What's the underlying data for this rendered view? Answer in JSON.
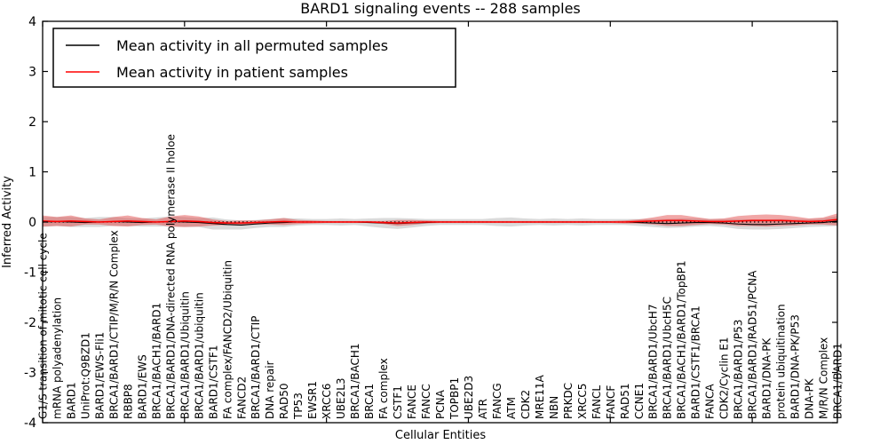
{
  "title": "BARD1 signaling events -- 288 samples",
  "legend": {
    "items": [
      {
        "label": "Mean activity in all permuted samples",
        "color": "#000000"
      },
      {
        "label": "Mean activity in patient samples",
        "color": "#ff0000"
      }
    ]
  },
  "colors": {
    "permuted_line": "#000000",
    "patient_line": "#ff0000",
    "permuted_band": "rgba(140,140,140,0.32)",
    "patient_band": "rgba(225,60,60,0.45)",
    "zero_line": "#000000",
    "frame": "#000000"
  },
  "chart_data": {
    "type": "line",
    "title": "BARD1 signaling events -- 288 samples",
    "xlabel": "Cellular Entities",
    "ylabel": "Inferred Activity",
    "ylim": [
      -4,
      4
    ],
    "yticks": [
      -4,
      -3,
      -2,
      -1,
      0,
      1,
      2,
      3,
      4
    ],
    "ytick_labels": [
      "-4",
      "-3",
      "-2",
      "-1",
      "0",
      "1",
      "2",
      "3",
      "4"
    ],
    "xtick_interval": 10,
    "grid": false,
    "legend_position": "upper left",
    "categories": [
      "G1/S transition of mitotic cell cycle",
      "mRNA polyadenylation",
      "BARD1",
      "UniProt:Q9BZD1",
      "BARD1/EWS-Fli1",
      "BRCA1/BARD1/CTIP/M/R/N Complex",
      "RBBP8",
      "BARD1/EWS",
      "BRCA1/BACH1/BARD1",
      "BRCA1/BARD1/DNA-directed RNA polymerase II holoe",
      "BRCA1/BARD1/Ubiquitin",
      "BRCA1/BARD1/ubiquitin",
      "BARD1/CSTF1",
      "FA complex/FANCD2/Ubiquitin",
      "FANCD2",
      "BRCA1/BARD1/CTIP",
      "DNA repair",
      "RAD50",
      "TP53",
      "EWSR1",
      "XRCC6",
      "UBE2L3",
      "BRCA1/BACH1",
      "BRCA1",
      "FA complex",
      "CSTF1",
      "FANCE",
      "FANCC",
      "PCNA",
      "TOPBP1",
      "UBE2D3",
      "ATR",
      "FANCG",
      "ATM",
      "CDK2",
      "MRE11A",
      "NBN",
      "PRKDC",
      "XRCC5",
      "FANCL",
      "FANCF",
      "RAD51",
      "CCNE1",
      "BRCA1/BARD1/UbcH7",
      "BRCA1/BARD1/UbcH5C",
      "BRCA1/BACH1/BARD1/TopBP1",
      "BARD1/CSTF1/BRCA1",
      "FANCA",
      "CDK2/Cyclin E1",
      "BRCA1/BARD1/P53",
      "BRCA1/BARD1/RAD51/PCNA",
      "BARD1/DNA-PK",
      "protein ubiquitination",
      "BARD1/DNA-PK/P53",
      "DNA-PK",
      "M/R/N Complex",
      "BRCA1/BARD1"
    ],
    "series": [
      {
        "name": "Mean activity in all permuted samples",
        "color": "#000000",
        "values": [
          0.0,
          0.01,
          0.0,
          -0.01,
          0.0,
          0.01,
          0.0,
          -0.01,
          0.0,
          0.01,
          0.0,
          -0.01,
          -0.03,
          -0.05,
          -0.06,
          -0.04,
          -0.02,
          -0.01,
          0.0,
          0.0,
          0.0,
          0.0,
          0.0,
          -0.01,
          -0.02,
          -0.03,
          -0.02,
          -0.01,
          0.0,
          0.0,
          0.0,
          0.0,
          0.0,
          0.0,
          0.0,
          0.0,
          0.0,
          0.0,
          0.0,
          0.0,
          0.0,
          0.0,
          -0.01,
          -0.02,
          -0.03,
          -0.02,
          -0.01,
          -0.01,
          -0.02,
          -0.04,
          -0.05,
          -0.05,
          -0.04,
          -0.03,
          -0.02,
          -0.01,
          0.02
        ]
      },
      {
        "name": "Mean activity in patient samples",
        "color": "#ff0000",
        "values": [
          0.02,
          0.01,
          0.02,
          0.01,
          0.0,
          0.01,
          0.02,
          0.01,
          0.0,
          0.01,
          0.02,
          0.01,
          -0.01,
          -0.02,
          -0.02,
          -0.01,
          0.0,
          0.01,
          0.0,
          0.0,
          0.0,
          0.0,
          0.0,
          0.0,
          -0.01,
          -0.02,
          -0.01,
          0.0,
          0.0,
          0.0,
          0.0,
          0.0,
          0.0,
          0.0,
          0.0,
          0.0,
          0.0,
          0.0,
          0.0,
          0.0,
          0.0,
          0.0,
          0.01,
          0.02,
          0.03,
          0.03,
          0.02,
          0.01,
          0.01,
          0.02,
          0.03,
          0.03,
          0.03,
          0.02,
          0.01,
          0.02,
          0.05
        ]
      }
    ],
    "bands": [
      {
        "name": "permuted samples std band",
        "series": "Mean activity in all permuted samples",
        "half_widths": [
          0.1,
          0.09,
          0.1,
          0.09,
          0.1,
          0.09,
          0.08,
          0.08,
          0.09,
          0.1,
          0.1,
          0.09,
          0.12,
          0.1,
          0.09,
          0.08,
          0.08,
          0.09,
          0.07,
          0.06,
          0.06,
          0.07,
          0.06,
          0.08,
          0.1,
          0.11,
          0.09,
          0.07,
          0.06,
          0.06,
          0.06,
          0.06,
          0.08,
          0.09,
          0.07,
          0.06,
          0.07,
          0.06,
          0.07,
          0.06,
          0.06,
          0.06,
          0.07,
          0.08,
          0.09,
          0.09,
          0.08,
          0.07,
          0.08,
          0.1,
          0.1,
          0.1,
          0.1,
          0.09,
          0.08,
          0.08,
          0.1
        ]
      },
      {
        "name": "patient samples std band",
        "series": "Mean activity in patient samples",
        "half_widths": [
          0.11,
          0.09,
          0.11,
          0.06,
          0.05,
          0.09,
          0.11,
          0.07,
          0.05,
          0.1,
          0.12,
          0.1,
          0.06,
          0.04,
          0.05,
          0.04,
          0.05,
          0.07,
          0.04,
          0.03,
          0.02,
          0.02,
          0.02,
          0.02,
          0.03,
          0.06,
          0.05,
          0.03,
          0.02,
          0.02,
          0.02,
          0.02,
          0.02,
          0.02,
          0.02,
          0.02,
          0.02,
          0.02,
          0.02,
          0.02,
          0.02,
          0.03,
          0.04,
          0.07,
          0.11,
          0.11,
          0.08,
          0.05,
          0.06,
          0.1,
          0.11,
          0.12,
          0.11,
          0.09,
          0.06,
          0.07,
          0.12
        ]
      }
    ],
    "zero_reference_line": {
      "y": 0,
      "style": "dotted",
      "color": "#000000"
    }
  }
}
